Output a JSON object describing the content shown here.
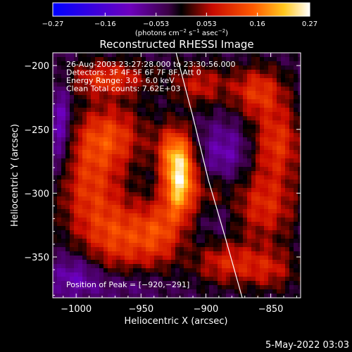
{
  "chart_data": {
    "type": "heatmap",
    "title": "Reconstructed RHESSI Image",
    "xlabel": "Heliocentric X (arcsec)",
    "ylabel": "Heliocentric Y (arcsec)",
    "xlim": [
      -1018,
      -827
    ],
    "ylim": [
      -382,
      -190
    ],
    "xticks": [
      {
        "value": -1000,
        "label": "−1000"
      },
      {
        "value": -950,
        "label": "−950"
      },
      {
        "value": -900,
        "label": "−900"
      },
      {
        "value": -850,
        "label": "−850"
      }
    ],
    "yticks": [
      {
        "value": -200,
        "label": "−200"
      },
      {
        "value": -250,
        "label": "−250"
      },
      {
        "value": -300,
        "label": "−300"
      },
      {
        "value": -350,
        "label": "−350"
      }
    ],
    "colorbar": {
      "range": [
        -0.27,
        0.27
      ],
      "ticks": [
        {
          "value": -0.27,
          "label": "−0.27"
        },
        {
          "value": -0.16,
          "label": "−0.16"
        },
        {
          "value": -0.053,
          "label": "−0.053"
        },
        {
          "value": 0.053,
          "label": "0.053"
        },
        {
          "value": 0.16,
          "label": "0.16"
        },
        {
          "value": 0.27,
          "label": "0.27"
        }
      ],
      "unit_prefix": "(photons cm",
      "unit_exp1": "−2",
      "unit_mid1": " s",
      "unit_exp2": "−1",
      "unit_mid2": " asec",
      "unit_exp3": "−2",
      "unit_suffix": ")"
    },
    "annotations": [
      "26-Aug-2003 23:27:28.000 to 23:30:56.000",
      "Detectors: 3F 4F 5F 6F 7F 8F, Att 0",
      "Energy Range: 3.0 - 6.0 keV",
      "Clean     Total counts: 7.62E+03"
    ],
    "peak_label": "Position of Peak = [−920,−291]",
    "peak": {
      "x": -920,
      "y": -291,
      "value": 0.27
    },
    "limb_curve": [
      {
        "x": -923,
        "y": -190
      },
      {
        "x": -910,
        "y": -240
      },
      {
        "x": -898,
        "y": -290
      },
      {
        "x": -885,
        "y": -335
      },
      {
        "x": -872,
        "y": -382
      }
    ],
    "blobs": [
      {
        "x": -920,
        "y": -291,
        "sx": 9,
        "sy": 20,
        "v": 0.26
      },
      {
        "x": -925,
        "y": -265,
        "sx": 10,
        "sy": 14,
        "v": 0.12
      },
      {
        "x": -975,
        "y": -255,
        "sx": 20,
        "sy": 18,
        "v": 0.14
      },
      {
        "x": -990,
        "y": -295,
        "sx": 18,
        "sy": 25,
        "v": 0.12
      },
      {
        "x": -965,
        "y": -335,
        "sx": 22,
        "sy": 20,
        "v": 0.14
      },
      {
        "x": -935,
        "y": -330,
        "sx": 12,
        "sy": 18,
        "v": 0.1
      },
      {
        "x": -975,
        "y": -210,
        "sx": 22,
        "sy": 10,
        "v": 0.13
      },
      {
        "x": -905,
        "y": -215,
        "sx": 15,
        "sy": 12,
        "v": 0.1
      },
      {
        "x": -860,
        "y": -220,
        "sx": 15,
        "sy": 14,
        "v": 0.13
      },
      {
        "x": -845,
        "y": -260,
        "sx": 14,
        "sy": 20,
        "v": 0.13
      },
      {
        "x": -855,
        "y": -310,
        "sx": 18,
        "sy": 20,
        "v": 0.12
      },
      {
        "x": -885,
        "y": -355,
        "sx": 18,
        "sy": 12,
        "v": 0.11
      },
      {
        "x": -850,
        "y": -360,
        "sx": 15,
        "sy": 12,
        "v": 0.09
      },
      {
        "x": -895,
        "y": -300,
        "sx": 8,
        "sy": 10,
        "v": 0.06
      },
      {
        "x": -1012,
        "y": -250,
        "sx": 6,
        "sy": 25,
        "v": -0.1
      },
      {
        "x": -1000,
        "y": -365,
        "sx": 14,
        "sy": 12,
        "v": -0.08
      },
      {
        "x": -960,
        "y": -372,
        "sx": 18,
        "sy": 8,
        "v": -0.04
      },
      {
        "x": -885,
        "y": -268,
        "sx": 14,
        "sy": 16,
        "v": -0.07
      },
      {
        "x": -888,
        "y": -320,
        "sx": 8,
        "sy": 10,
        "v": -0.03
      }
    ]
  },
  "footer": {
    "date": "5-May-2022 03:03"
  }
}
